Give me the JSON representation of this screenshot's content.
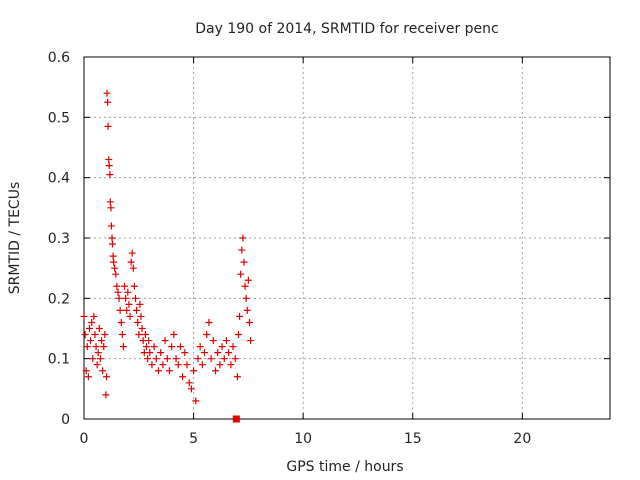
{
  "chart_data": {
    "type": "scatter",
    "title": "Day 190 of 2014, SRMTID for receiver penc",
    "xlabel": "GPS time / hours",
    "ylabel": "SRMTID / TECUs",
    "xlim": [
      0,
      24
    ],
    "ylim": [
      0,
      0.6
    ],
    "x_ticks": [
      0,
      5,
      10,
      15,
      20
    ],
    "x_tick_labels": [
      "0",
      "5",
      "10",
      "15",
      "20"
    ],
    "y_ticks": [
      0,
      0.1,
      0.2,
      0.3,
      0.4,
      0.5,
      0.6
    ],
    "y_tick_labels": [
      "0",
      "0.1",
      "0.2",
      "0.3",
      "0.4",
      "0.5",
      "0.6"
    ],
    "grid": true,
    "marker": "plus",
    "color": "#e00000",
    "series": [
      {
        "name": "SRMTID",
        "points": [
          [
            0.0,
            0.17
          ],
          [
            0.05,
            0.14
          ],
          [
            0.1,
            0.08
          ],
          [
            0.15,
            0.12
          ],
          [
            0.2,
            0.07
          ],
          [
            0.25,
            0.15
          ],
          [
            0.3,
            0.13
          ],
          [
            0.35,
            0.16
          ],
          [
            0.4,
            0.1
          ],
          [
            0.45,
            0.17
          ],
          [
            0.5,
            0.14
          ],
          [
            0.55,
            0.12
          ],
          [
            0.6,
            0.09
          ],
          [
            0.65,
            0.11
          ],
          [
            0.7,
            0.15
          ],
          [
            0.75,
            0.1
          ],
          [
            0.8,
            0.13
          ],
          [
            0.85,
            0.08
          ],
          [
            0.9,
            0.12
          ],
          [
            0.95,
            0.14
          ],
          [
            1.0,
            0.04
          ],
          [
            1.03,
            0.07
          ],
          [
            1.05,
            0.54
          ],
          [
            1.08,
            0.525
          ],
          [
            1.1,
            0.485
          ],
          [
            1.13,
            0.43
          ],
          [
            1.15,
            0.42
          ],
          [
            1.18,
            0.405
          ],
          [
            1.2,
            0.36
          ],
          [
            1.23,
            0.35
          ],
          [
            1.25,
            0.32
          ],
          [
            1.28,
            0.3
          ],
          [
            1.3,
            0.29
          ],
          [
            1.33,
            0.27
          ],
          [
            1.35,
            0.26
          ],
          [
            1.4,
            0.25
          ],
          [
            1.45,
            0.24
          ],
          [
            1.5,
            0.22
          ],
          [
            1.55,
            0.21
          ],
          [
            1.6,
            0.2
          ],
          [
            1.65,
            0.18
          ],
          [
            1.7,
            0.16
          ],
          [
            1.75,
            0.14
          ],
          [
            1.8,
            0.12
          ],
          [
            1.85,
            0.22
          ],
          [
            1.9,
            0.2
          ],
          [
            1.95,
            0.18
          ],
          [
            2.0,
            0.21
          ],
          [
            2.05,
            0.19
          ],
          [
            2.1,
            0.17
          ],
          [
            2.15,
            0.26
          ],
          [
            2.2,
            0.275
          ],
          [
            2.25,
            0.25
          ],
          [
            2.3,
            0.22
          ],
          [
            2.35,
            0.2
          ],
          [
            2.4,
            0.18
          ],
          [
            2.45,
            0.16
          ],
          [
            2.5,
            0.14
          ],
          [
            2.55,
            0.19
          ],
          [
            2.6,
            0.17
          ],
          [
            2.65,
            0.15
          ],
          [
            2.7,
            0.13
          ],
          [
            2.75,
            0.11
          ],
          [
            2.8,
            0.14
          ],
          [
            2.85,
            0.12
          ],
          [
            2.9,
            0.1
          ],
          [
            2.95,
            0.13
          ],
          [
            3.0,
            0.11
          ],
          [
            3.1,
            0.09
          ],
          [
            3.2,
            0.12
          ],
          [
            3.3,
            0.1
          ],
          [
            3.4,
            0.08
          ],
          [
            3.5,
            0.11
          ],
          [
            3.6,
            0.09
          ],
          [
            3.7,
            0.13
          ],
          [
            3.8,
            0.1
          ],
          [
            3.9,
            0.08
          ],
          [
            4.0,
            0.12
          ],
          [
            4.1,
            0.14
          ],
          [
            4.2,
            0.1
          ],
          [
            4.3,
            0.09
          ],
          [
            4.4,
            0.12
          ],
          [
            4.5,
            0.07
          ],
          [
            4.6,
            0.11
          ],
          [
            4.7,
            0.09
          ],
          [
            4.8,
            0.06
          ],
          [
            4.9,
            0.05
          ],
          [
            5.0,
            0.08
          ],
          [
            5.1,
            0.03
          ],
          [
            5.2,
            0.1
          ],
          [
            5.3,
            0.12
          ],
          [
            5.4,
            0.09
          ],
          [
            5.5,
            0.11
          ],
          [
            5.6,
            0.14
          ],
          [
            5.7,
            0.16
          ],
          [
            5.8,
            0.1
          ],
          [
            5.9,
            0.13
          ],
          [
            6.0,
            0.08
          ],
          [
            6.1,
            0.11
          ],
          [
            6.2,
            0.09
          ],
          [
            6.3,
            0.12
          ],
          [
            6.4,
            0.1
          ],
          [
            6.5,
            0.13
          ],
          [
            6.6,
            0.11
          ],
          [
            6.7,
            0.09
          ],
          [
            6.8,
            0.12
          ],
          [
            6.9,
            0.1
          ],
          [
            7.0,
            0.07
          ],
          [
            7.05,
            0.14
          ],
          [
            7.1,
            0.17
          ],
          [
            7.15,
            0.24
          ],
          [
            7.2,
            0.28
          ],
          [
            7.25,
            0.3
          ],
          [
            7.3,
            0.26
          ],
          [
            7.35,
            0.22
          ],
          [
            7.4,
            0.2
          ],
          [
            7.45,
            0.18
          ],
          [
            7.5,
            0.23
          ],
          [
            7.55,
            0.16
          ],
          [
            7.6,
            0.13
          ]
        ]
      }
    ],
    "markers": [
      {
        "name": "zero-value-marker",
        "x": 6.95,
        "y": 0.0,
        "shape": "square"
      }
    ]
  }
}
